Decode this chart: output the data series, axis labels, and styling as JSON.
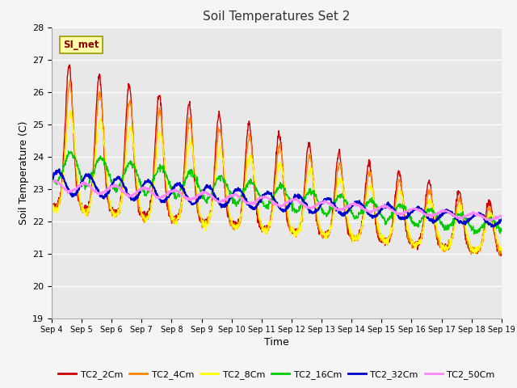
{
  "title": "Soil Temperatures Set 2",
  "xlabel": "Time",
  "ylabel": "Soil Temperature (C)",
  "ylim": [
    19.0,
    28.0
  ],
  "yticks": [
    19.0,
    20.0,
    21.0,
    22.0,
    23.0,
    24.0,
    25.0,
    26.0,
    27.0,
    28.0
  ],
  "series_labels": [
    "TC2_2Cm",
    "TC2_4Cm",
    "TC2_8Cm",
    "TC2_16Cm",
    "TC2_32Cm",
    "TC2_50Cm"
  ],
  "series_colors": [
    "#cc0000",
    "#ff8800",
    "#ffff00",
    "#00cc00",
    "#0000cc",
    "#ff88ff"
  ],
  "series_linewidths": [
    1.0,
    1.0,
    1.0,
    1.0,
    1.5,
    1.5
  ],
  "annotation_text": "SI_met",
  "plot_bg_color": "#e8e8e8",
  "fig_bg_color": "#f5f5f5",
  "n_days": 15,
  "points_per_day": 96,
  "start_day": 4,
  "peak_hour": 14,
  "trough_hour": 6
}
